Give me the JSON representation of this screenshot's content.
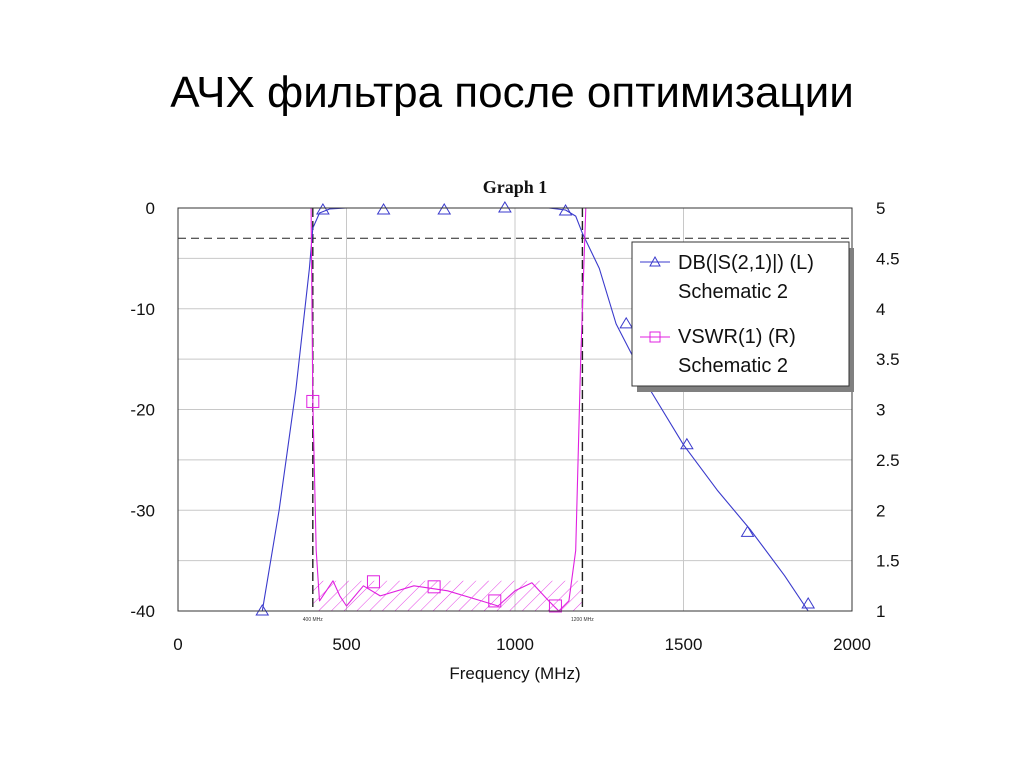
{
  "slide": {
    "title": "АЧХ фильтра после оптимизации"
  },
  "colors": {
    "s21": "#3a3acc",
    "vswr": "#e020e0",
    "grid": "#c8c8c8",
    "marker_line": "#222222"
  },
  "chart_data": {
    "type": "line",
    "title": "Graph 1",
    "xlabel": "Frequency (MHz)",
    "ylabel_left": "",
    "ylabel_right": "",
    "xlim": [
      0,
      2000
    ],
    "ylim_left": [
      -40,
      0
    ],
    "ylim_right": [
      1,
      5
    ],
    "x_ticks": [
      "0",
      "500",
      "1000",
      "1500",
      "2000"
    ],
    "y_ticks_left": [
      "0",
      "-10",
      "-20",
      "-30",
      "-40"
    ],
    "y_ticks_right": [
      "5",
      "4.5",
      "4",
      "3.5",
      "3",
      "2.5",
      "2",
      "1.5",
      "1"
    ],
    "grid": true,
    "legend_position": "upper-right (inside)",
    "annotations": {
      "vertical_markers": [
        {
          "x": 400,
          "label": "400 MHz"
        },
        {
          "x": 1200,
          "label": "1200 MHz"
        }
      ],
      "horizontal_marker_db": -3,
      "hatched_region": {
        "x": [
          400,
          1200
        ],
        "vswr_max": 1.3
      }
    },
    "series": [
      {
        "name": "DB(|S(2,1)|) (L)",
        "source": "Schematic 2",
        "axis": "left",
        "marker": "triangle",
        "x": [
          250,
          300,
          350,
          390,
          400,
          420,
          450,
          500,
          600,
          800,
          1000,
          1100,
          1150,
          1180,
          1200,
          1250,
          1300,
          1400,
          1500,
          1600,
          1700,
          1800,
          1870
        ],
        "values": [
          -40,
          -30,
          -18,
          -6,
          -2,
          -0.5,
          -0.1,
          0,
          0,
          0,
          0,
          0,
          -0.2,
          -0.8,
          -2.5,
          -6,
          -11.5,
          -18,
          -23.5,
          -28,
          -32,
          -36.5,
          -40
        ],
        "marker_points": {
          "x": [
            250,
            430,
            610,
            790,
            970,
            1150,
            1330,
            1510,
            1690,
            1870
          ],
          "values": [
            -40,
            -0.2,
            -0.2,
            -0.2,
            0,
            -0.3,
            -11.5,
            -23.5,
            -32.2,
            -39.3
          ]
        }
      },
      {
        "name": "VSWR(1) (R)",
        "source": "Schematic 2",
        "axis": "right",
        "marker": "square",
        "x": [
          395,
          400,
          410,
          420,
          440,
          460,
          480,
          500,
          550,
          600,
          700,
          800,
          900,
          950,
          1000,
          1050,
          1100,
          1130,
          1160,
          1180,
          1195,
          1210
        ],
        "values": [
          5,
          3.1,
          1.6,
          1.1,
          1.2,
          1.3,
          1.15,
          1.05,
          1.25,
          1.15,
          1.25,
          1.2,
          1.1,
          1.05,
          1.2,
          1.28,
          1.1,
          1.0,
          1.1,
          1.6,
          3.5,
          5
        ],
        "marker_points": {
          "x": [
            400,
            580,
            760,
            940,
            1120
          ],
          "values": [
            3.08,
            1.29,
            1.24,
            1.1,
            1.05
          ]
        }
      }
    ]
  },
  "legend": {
    "items": [
      {
        "label": "DB(|S(2,1)|) (L)",
        "sublabel": "Schematic 2"
      },
      {
        "label": "VSWR(1) (R)",
        "sublabel": "Schematic 2"
      }
    ]
  }
}
